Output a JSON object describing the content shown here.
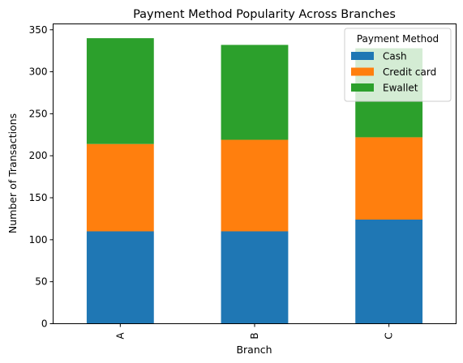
{
  "chart_data": {
    "type": "bar",
    "stacked": true,
    "title": "Payment Method Popularity Across Branches",
    "xlabel": "Branch",
    "ylabel": "Number of Transactions",
    "categories": [
      "A",
      "B",
      "C"
    ],
    "series": [
      {
        "name": "Cash",
        "color": "#1f77b4",
        "values": [
          110,
          110,
          124
        ]
      },
      {
        "name": "Credit card",
        "color": "#ff7f0e",
        "values": [
          104,
          109,
          98
        ]
      },
      {
        "name": "Ewallet",
        "color": "#2ca02c",
        "values": [
          126,
          113,
          106
        ]
      }
    ],
    "ylim": [
      0,
      357
    ],
    "yticks": [
      0,
      50,
      100,
      150,
      200,
      250,
      300,
      350
    ],
    "legend": {
      "title": "Payment Method",
      "position": "top-right"
    },
    "grid": false
  }
}
